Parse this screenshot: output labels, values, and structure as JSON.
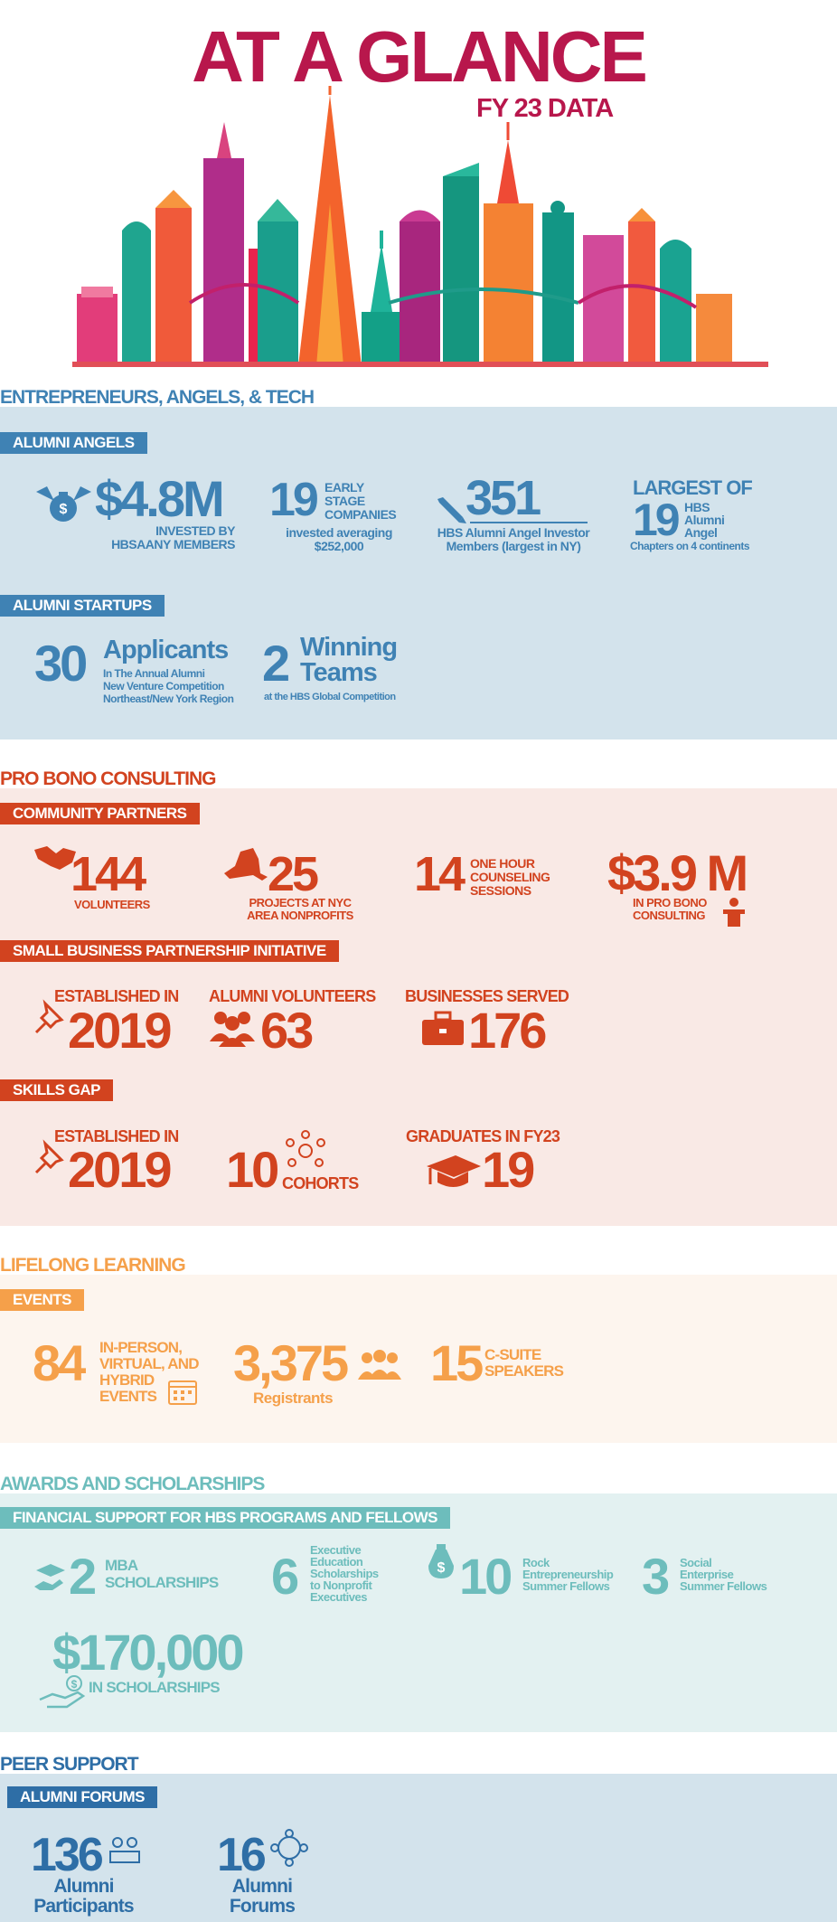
{
  "header": {
    "title": "AT A GLANCE",
    "subtitle": "FY 23 DATA"
  },
  "colors": {
    "title": "#b8174c",
    "blue": "#3f82b4",
    "red": "#d2431f",
    "orange": "#f5a04a",
    "teal": "#6dbdbc",
    "navy": "#2e6ea6"
  },
  "entrepreneurs": {
    "heading": "ENTREPRENEURS, ANGELS, & TECH",
    "angels_tag": "ALUMNI ANGELS",
    "invested_value": "$4.8M",
    "invested_caption_1": "INVESTED BY",
    "invested_caption_2": "HBSAANY MEMBERS",
    "early_value": "19",
    "early_label_1": "EARLY",
    "early_label_2": "STAGE",
    "early_label_3": "COMPANIES",
    "early_caption_1": "invested averaging",
    "early_caption_2": "$252,000",
    "members_value": "351",
    "members_caption_1": "HBS Alumni Angel Investor",
    "members_caption_2": "Members (largest in NY)",
    "largest_label": "LARGEST OF",
    "largest_value": "19",
    "largest_sub_1": "HBS",
    "largest_sub_2": "Alumni",
    "largest_sub_3": "Angel",
    "largest_caption": "Chapters on 4 continents",
    "startups_tag": "ALUMNI STARTUPS",
    "applicants_value": "30",
    "applicants_label": "Applicants",
    "applicants_caption_1": "In The Annual Alumni",
    "applicants_caption_2": "New Venture Competition",
    "applicants_caption_3": "Northeast/New York Region",
    "teams_value": "2",
    "teams_label_1": "Winning",
    "teams_label_2": "Teams",
    "teams_caption": "at the HBS Global Competition"
  },
  "probono": {
    "heading": "PRO BONO CONSULTING",
    "community_tag": "COMMUNITY PARTNERS",
    "volunteers_value": "144",
    "volunteers_caption": "VOLUNTEERS",
    "projects_value": "25",
    "projects_caption_1": "PROJECTS AT NYC",
    "projects_caption_2": "AREA NONPROFITS",
    "sessions_value": "14",
    "sessions_label_1": "ONE HOUR",
    "sessions_label_2": "COUNSELING",
    "sessions_label_3": "SESSIONS",
    "consulting_value": "$3.9 M",
    "consulting_caption_1": "IN PRO BONO",
    "consulting_caption_2": "CONSULTING",
    "sbpi_tag": "SMALL BUSINESS PARTNERSHIP INITIATIVE",
    "sbpi_est_label": "ESTABLISHED IN",
    "sbpi_est_value": "2019",
    "sbpi_vol_label": "ALUMNI VOLUNTEERS",
    "sbpi_vol_value": "63",
    "sbpi_biz_label": "BUSINESSES SERVED",
    "sbpi_biz_value": "176",
    "skills_tag": "SKILLS GAP",
    "skills_est_label": "ESTABLISHED IN",
    "skills_est_value": "2019",
    "cohorts_value": "10",
    "cohorts_label": "COHORTS",
    "grads_label": "GRADUATES IN FY23",
    "grads_value": "19"
  },
  "lifelong": {
    "heading": "LIFELONG LEARNING",
    "events_tag": "EVENTS",
    "events_value": "84",
    "events_label_1": "IN-PERSON,",
    "events_label_2": "VIRTUAL, AND",
    "events_label_3": "HYBRID",
    "events_label_4": "EVENTS",
    "registrants_value": "3,375",
    "registrants_caption": "Registrants",
    "speakers_value": "15",
    "speakers_label_1": "C-SUITE",
    "speakers_label_2": "SPEAKERS"
  },
  "awards": {
    "heading": "AWARDS AND SCHOLARSHIPS",
    "fin_tag": "FINANCIAL SUPPORT FOR HBS PROGRAMS AND FELLOWS",
    "mba_value": "2",
    "mba_label_1": "MBA",
    "mba_label_2": "SCHOLARSHIPS",
    "exec_value": "6",
    "exec_label_1": "Executive",
    "exec_label_2": "Education",
    "exec_label_3": "Scholarships",
    "exec_label_4": "to Nonprofit",
    "exec_label_5": "Executives",
    "rock_value": "10",
    "rock_label_1": "Rock",
    "rock_label_2": "Entrepreneurship",
    "rock_label_3": "Summer Fellows",
    "social_value": "3",
    "social_label_1": "Social",
    "social_label_2": "Enterprise",
    "social_label_3": "Summer Fellows",
    "total_value": "$170,000",
    "total_caption": "IN SCHOLARSHIPS"
  },
  "peer": {
    "heading": "PEER SUPPORT",
    "forums_tag": "ALUMNI FORUMS",
    "participants_value": "136",
    "participants_caption_1": "Alumni",
    "participants_caption_2": "Participants",
    "forums_value": "16",
    "forums_caption_1": "Alumni",
    "forums_caption_2": "Forums"
  }
}
